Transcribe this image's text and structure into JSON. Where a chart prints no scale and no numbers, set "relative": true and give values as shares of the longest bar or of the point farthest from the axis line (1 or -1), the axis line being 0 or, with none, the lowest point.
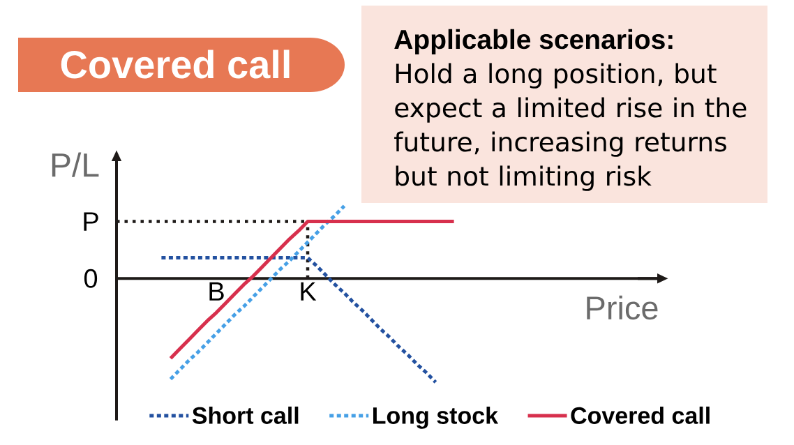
{
  "chart_data": {
    "type": "line",
    "relative": true,
    "title": "Covered call",
    "xlabel": "Price",
    "ylabel": "P/L",
    "categories": [
      null,
      null,
      null,
      null,
      null,
      null,
      "B",
      null,
      null,
      null,
      null,
      null,
      null,
      null,
      null,
      null,
      "K",
      null,
      null,
      null,
      null,
      null,
      null,
      null,
      null,
      null,
      null,
      null,
      null,
      null,
      null,
      null,
      null
    ],
    "series": [
      {
        "name": "Short call",
        "color": "#2351a0",
        "line_style": "dashed",
        "values": [
          0.2,
          0.2,
          0.2,
          0.2,
          0.2,
          0.2,
          0.2,
          0.2,
          0.2,
          0.2,
          0.2,
          0.2,
          0.2,
          0.2,
          0.2,
          0.2,
          0.2,
          0.12,
          0.03,
          -0.06,
          -0.14,
          -0.23,
          -0.31,
          -0.4,
          -0.49,
          -0.57,
          -0.66,
          -0.74,
          -0.83,
          -0.91,
          -1,
          null,
          null
        ]
      },
      {
        "name": "Long stock",
        "color": "#46a0e6",
        "line_style": "dashed",
        "values": [
          null,
          -0.97,
          -0.88,
          -0.79,
          -0.71,
          -0.62,
          -0.53,
          -0.44,
          -0.35,
          -0.27,
          -0.18,
          -0.09,
          0,
          0.09,
          0.17,
          0.26,
          0.35,
          0.44,
          0.53,
          0.61,
          0.7,
          null,
          null,
          null,
          null,
          null,
          null,
          null,
          null,
          null,
          null,
          null,
          null
        ]
      },
      {
        "name": "Covered call",
        "color": "#d7304d",
        "line_style": "solid",
        "values": [
          null,
          -0.77,
          -0.68,
          -0.59,
          -0.5,
          -0.41,
          -0.33,
          -0.24,
          -0.15,
          -0.06,
          0.02,
          0.11,
          0.2,
          0.29,
          0.38,
          0.46,
          0.55,
          0.55,
          0.55,
          0.55,
          0.55,
          0.55,
          0.55,
          0.55,
          0.55,
          0.55,
          0.55,
          0.55,
          0.55,
          0.55,
          0.55,
          0.55,
          0.55
        ]
      }
    ],
    "ref_lines": [
      {
        "axis": "y",
        "value": 0.55,
        "label": "P",
        "color": "#1e1a18",
        "line_style": "dotted"
      },
      {
        "axis": "x",
        "value": "K",
        "color": "#1e1a18",
        "line_style": "dotted"
      }
    ],
    "legend": "bottom",
    "annotations": [
      "Applicable scenarios:",
      "Hold a long position, but expect a limited rise in the future, increasing returns but not limiting risk",
      "0"
    ]
  }
}
